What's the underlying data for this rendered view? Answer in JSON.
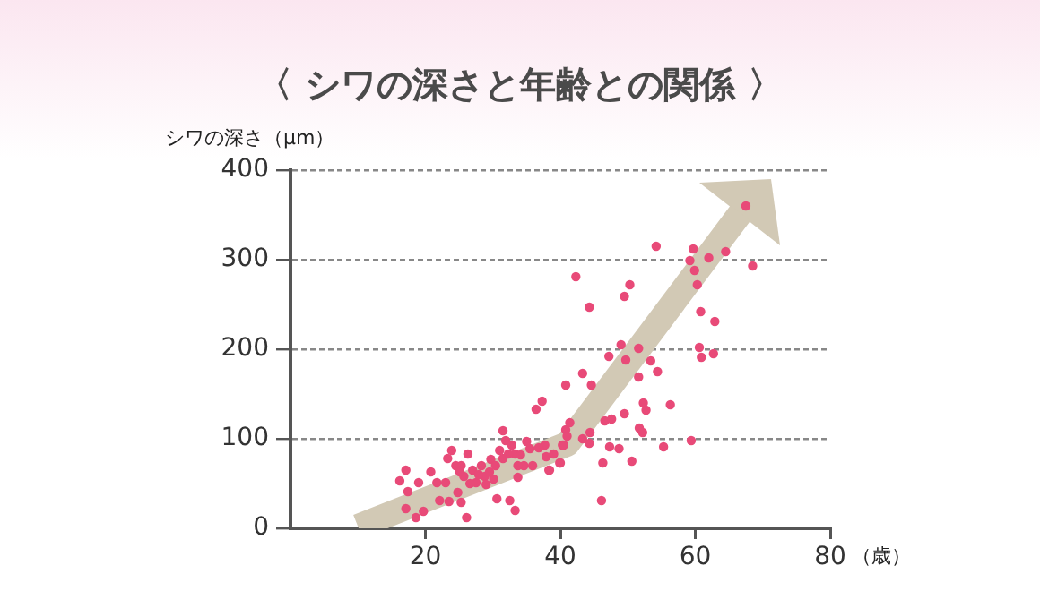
{
  "chart_data": {
    "type": "scatter",
    "title": "〈 シワの深さと年齢との関係 〉",
    "ylabel": "シワの深さ（μm）",
    "xlabel": "（歳）",
    "xlim": [
      0,
      80
    ],
    "xticks": [
      20,
      40,
      60,
      80
    ],
    "ylim": [
      0,
      400
    ],
    "yticks": [
      0,
      100,
      200,
      300,
      400
    ],
    "grid": "y",
    "marker": "circle",
    "series": [
      {
        "type": "line",
        "color": "#d2c9b5",
        "marker": "none",
        "x": [
          10,
          41,
          66.7
        ],
        "values": [
          2,
          94,
          352
        ]
      },
      {
        "color": "#e84a78",
        "x": [
          16.2,
          17.1,
          17.4,
          17.1,
          18.6,
          19,
          19.7,
          20.8,
          21.7,
          22.1,
          23,
          23.3,
          23.9,
          23.5,
          24.8,
          25.3,
          26.1,
          25.3,
          25.7,
          26.3,
          27,
          27.5,
          28.3,
          28.8,
          29.7,
          30.1,
          30.6,
          31,
          31.5,
          31.9,
          32.5,
          33.3,
          32.8,
          33.3,
          33.7,
          34.6,
          35,
          35.9,
          36.4,
          37.3,
          37.7,
          38.4,
          39,
          39.9,
          40.3,
          40.8,
          40.8,
          41.4,
          43.3,
          44.6,
          44.4,
          46.1,
          46.6,
          24.5,
          25.1,
          26.6,
          27.9,
          29,
          29.5,
          30.4,
          31.5,
          32.3,
          34.1,
          35.5,
          36.8,
          33.7,
          42.3,
          44.3,
          50.3,
          49.5,
          54.2,
          59.7,
          59.2,
          59.9,
          60.3,
          62,
          64.5,
          67.5,
          68.5,
          60.8,
          62.9,
          60.6,
          60.9,
          62.7,
          49,
          51.6,
          47.2,
          49.7,
          53.4,
          54.4,
          51.6,
          52.3,
          52.7,
          56.3,
          49.5,
          47.6,
          51.7,
          52.2,
          43.3,
          44.3,
          47.3,
          48.7,
          55.3,
          59.4,
          50.6,
          46.3,
          41,
          40.5,
          40,
          38.3,
          37.9
        ],
        "values": [
          53,
          65,
          41,
          22,
          12,
          51,
          19,
          63,
          51,
          31,
          51,
          78,
          87,
          30,
          40,
          29,
          12,
          70,
          58,
          83,
          65,
          51,
          70,
          58,
          77,
          55,
          33,
          87,
          109,
          98,
          31,
          20,
          93,
          83,
          57,
          70,
          97,
          70,
          133,
          142,
          93,
          65,
          83,
          73,
          93,
          110,
          160,
          118,
          173,
          160,
          107,
          31,
          120,
          70,
          63,
          50,
          60,
          49,
          63,
          70,
          78,
          83,
          82,
          89,
          90,
          70,
          281,
          247,
          272,
          259,
          315,
          312,
          299,
          288,
          272,
          302,
          309,
          360,
          293,
          242,
          231,
          202,
          191,
          195,
          205,
          201,
          192,
          188,
          187,
          175,
          169,
          140,
          132,
          138,
          128,
          122,
          112,
          107,
          100,
          95,
          91,
          89,
          91,
          98,
          75,
          73,
          103,
          93,
          73,
          65,
          80
        ]
      }
    ]
  }
}
